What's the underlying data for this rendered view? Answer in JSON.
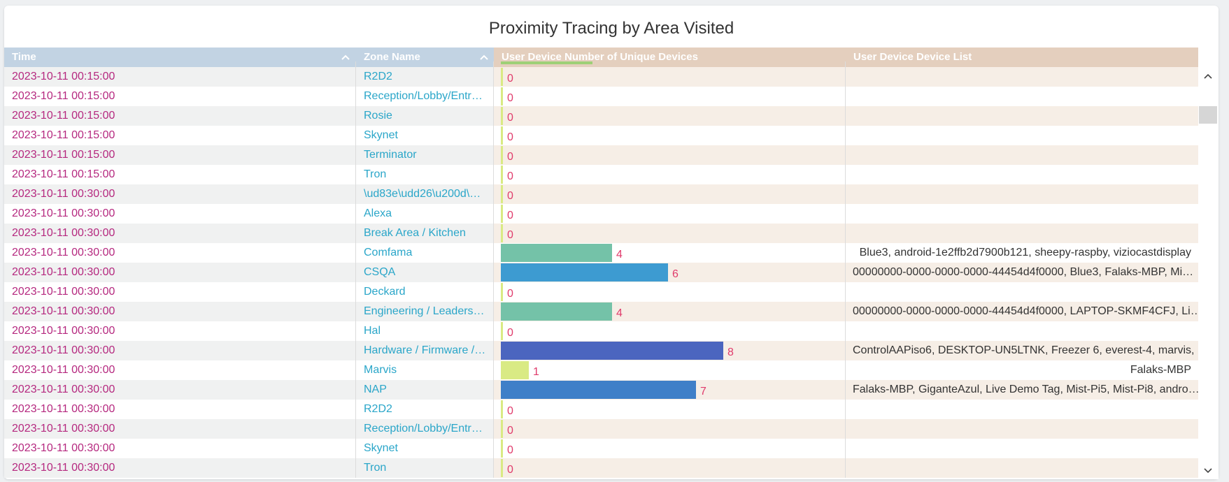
{
  "title": "Proximity Tracing by Area Visited",
  "columns": [
    {
      "label": "Time"
    },
    {
      "label": "Zone Name"
    },
    {
      "label": "User Device Number of Unique Devices"
    },
    {
      "label": "User Device Device List"
    }
  ],
  "bar_scale_max": 10,
  "rows": [
    {
      "time": "2023-10-11 00:15:00",
      "zone": "R2D2",
      "count": 0,
      "count_label": "0",
      "devices": "",
      "bar_color": "#d9ea84"
    },
    {
      "time": "2023-10-11 00:15:00",
      "zone": "Reception/Lobby/Entr…",
      "count": 0,
      "count_label": "0",
      "devices": "",
      "bar_color": "#d9ea84"
    },
    {
      "time": "2023-10-11 00:15:00",
      "zone": "Rosie",
      "count": 0,
      "count_label": "0",
      "devices": "",
      "bar_color": "#d9ea84"
    },
    {
      "time": "2023-10-11 00:15:00",
      "zone": "Skynet",
      "count": 0,
      "count_label": "0",
      "devices": "",
      "bar_color": "#d9ea84"
    },
    {
      "time": "2023-10-11 00:15:00",
      "zone": "Terminator",
      "count": 0,
      "count_label": "0",
      "devices": "",
      "bar_color": "#d9ea84"
    },
    {
      "time": "2023-10-11 00:15:00",
      "zone": "Tron",
      "count": 0,
      "count_label": "0",
      "devices": "",
      "bar_color": "#d9ea84"
    },
    {
      "time": "2023-10-11 00:30:00",
      "zone": "\\ud83e\\udd26\\u200d\\…",
      "count": 0,
      "count_label": "0",
      "devices": "",
      "bar_color": "#d9ea84"
    },
    {
      "time": "2023-10-11 00:30:00",
      "zone": "Alexa",
      "count": 0,
      "count_label": "0",
      "devices": "",
      "bar_color": "#d9ea84"
    },
    {
      "time": "2023-10-11 00:30:00",
      "zone": "Break Area / Kitchen",
      "count": 0,
      "count_label": "0",
      "devices": "",
      "bar_color": "#d9ea84"
    },
    {
      "time": "2023-10-11 00:30:00",
      "zone": "Comfama",
      "count": 4,
      "count_label": "4",
      "devices": "Blue3, android-1e2ffb2d7900b121, sheepy-raspby, viziocastdisplay",
      "bar_color": "#74c2a8"
    },
    {
      "time": "2023-10-11 00:30:00",
      "zone": "CSQA",
      "count": 6,
      "count_label": "6",
      "devices": "00000000-0000-0000-0000-44454d4f0000, Blue3, Falaks-MBP, Mi…",
      "bar_color": "#3d9bd1"
    },
    {
      "time": "2023-10-11 00:30:00",
      "zone": "Deckard",
      "count": 0,
      "count_label": "0",
      "devices": "",
      "bar_color": "#d9ea84"
    },
    {
      "time": "2023-10-11 00:30:00",
      "zone": "Engineering / Leaders…",
      "count": 4,
      "count_label": "4",
      "devices": "00000000-0000-0000-0000-44454d4f0000, LAPTOP-SKMF4CFJ, Li…",
      "bar_color": "#74c2a8"
    },
    {
      "time": "2023-10-11 00:30:00",
      "zone": "Hal",
      "count": 0,
      "count_label": "0",
      "devices": "",
      "bar_color": "#d9ea84"
    },
    {
      "time": "2023-10-11 00:30:00",
      "zone": "Hardware / Firmware /…",
      "count": 8,
      "count_label": "8",
      "devices": "ControlAAPiso6, DESKTOP-UN5LTNK, Freezer 6, everest-4, marvis, …",
      "bar_color": "#4b65bf"
    },
    {
      "time": "2023-10-11 00:30:00",
      "zone": "Marvis",
      "count": 1,
      "count_label": "1",
      "devices": "Falaks-MBP",
      "bar_color": "#d9ea84"
    },
    {
      "time": "2023-10-11 00:30:00",
      "zone": "NAP",
      "count": 7,
      "count_label": "7",
      "devices": "Falaks-MBP, GiganteAzul, Live Demo Tag, Mist-Pi5, Mist-Pi8, andro…",
      "bar_color": "#3f7fc8"
    },
    {
      "time": "2023-10-11 00:30:00",
      "zone": "R2D2",
      "count": 0,
      "count_label": "0",
      "devices": "",
      "bar_color": "#d9ea84"
    },
    {
      "time": "2023-10-11 00:30:00",
      "zone": "Reception/Lobby/Entr…",
      "count": 0,
      "count_label": "0",
      "devices": "",
      "bar_color": "#d9ea84"
    },
    {
      "time": "2023-10-11 00:30:00",
      "zone": "Skynet",
      "count": 0,
      "count_label": "0",
      "devices": "",
      "bar_color": "#d9ea84"
    },
    {
      "time": "2023-10-11 00:30:00",
      "zone": "Tron",
      "count": 0,
      "count_label": "0",
      "devices": "",
      "bar_color": "#d9ea84"
    }
  ]
}
